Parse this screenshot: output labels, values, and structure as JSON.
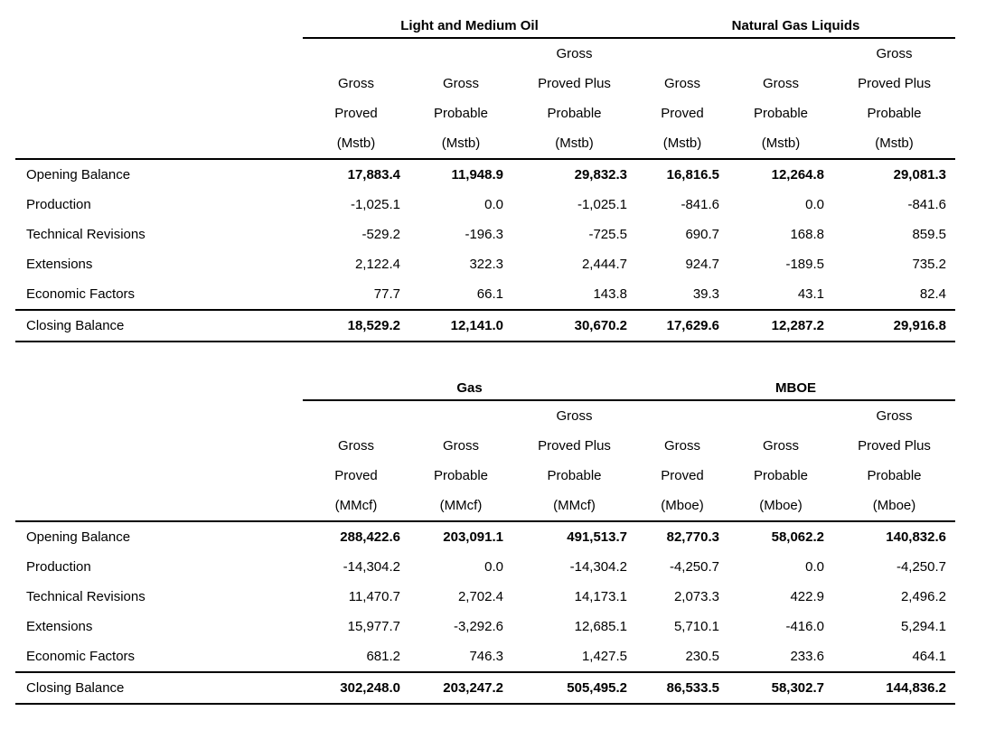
{
  "colors": {
    "text": "#000000",
    "background": "#ffffff",
    "rule": "#000000"
  },
  "table1": {
    "group1_title": "Light and Medium Oil",
    "group2_title": "Natural Gas Liquids",
    "col_headers": [
      "Gross\nProved\n(Mstb)",
      "Gross\nProbable\n(Mstb)",
      "Gross\nProved Plus\nProbable\n(Mstb)",
      "Gross\nProved\n(Mstb)",
      "Gross\nProbable\n(Mstb)",
      "Gross\nProved Plus\nProbable\n(Mstb)"
    ],
    "rows": [
      {
        "label": "Opening Balance",
        "values": [
          "17,883.4",
          "11,948.9",
          "29,832.3",
          "16,816.5",
          "12,264.8",
          "29,081.3"
        ]
      },
      {
        "label": "Production",
        "values": [
          "-1,025.1",
          "0.0",
          "-1,025.1",
          "-841.6",
          "0.0",
          "-841.6"
        ]
      },
      {
        "label": "Technical Revisions",
        "values": [
          "-529.2",
          "-196.3",
          "-725.5",
          "690.7",
          "168.8",
          "859.5"
        ]
      },
      {
        "label": "Extensions",
        "values": [
          "2,122.4",
          "322.3",
          "2,444.7",
          "924.7",
          "-189.5",
          "735.2"
        ]
      },
      {
        "label": "Economic Factors",
        "values": [
          "77.7",
          "66.1",
          "143.8",
          "39.3",
          "43.1",
          "82.4"
        ]
      },
      {
        "label": "Closing Balance",
        "values": [
          "18,529.2",
          "12,141.0",
          "30,670.2",
          "17,629.6",
          "12,287.2",
          "29,916.8"
        ]
      }
    ]
  },
  "table2": {
    "group1_title": "Gas",
    "group2_title": "MBOE",
    "col_headers": [
      "Gross\nProved\n(MMcf)",
      "Gross\nProbable\n(MMcf)",
      "Gross\nProved Plus\nProbable\n(MMcf)",
      "Gross\nProved\n(Mboe)",
      "Gross\nProbable\n(Mboe)",
      "Gross\nProved Plus\nProbable\n(Mboe)"
    ],
    "rows": [
      {
        "label": "Opening Balance",
        "values": [
          "288,422.6",
          "203,091.1",
          "491,513.7",
          "82,770.3",
          "58,062.2",
          "140,832.6"
        ]
      },
      {
        "label": "Production",
        "values": [
          "-14,304.2",
          "0.0",
          "-14,304.2",
          "-4,250.7",
          "0.0",
          "-4,250.7"
        ]
      },
      {
        "label": "Technical Revisions",
        "values": [
          "11,470.7",
          "2,702.4",
          "14,173.1",
          "2,073.3",
          "422.9",
          "2,496.2"
        ]
      },
      {
        "label": "Extensions",
        "values": [
          "15,977.7",
          "-3,292.6",
          "12,685.1",
          "5,710.1",
          "-416.0",
          "5,294.1"
        ]
      },
      {
        "label": "Economic Factors",
        "values": [
          "681.2",
          "746.3",
          "1,427.5",
          "230.5",
          "233.6",
          "464.1"
        ]
      },
      {
        "label": "Closing Balance",
        "values": [
          "302,248.0",
          "203,247.2",
          "505,495.2",
          "86,533.5",
          "58,302.7",
          "144,836.2"
        ]
      }
    ]
  }
}
